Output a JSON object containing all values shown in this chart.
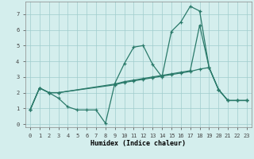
{
  "xlabel": "Humidex (Indice chaleur)",
  "bg_color": "#d4eeed",
  "line_color": "#2a7a6a",
  "grid_color": "#a0cccc",
  "xlim": [
    -0.5,
    23.5
  ],
  "ylim": [
    -0.2,
    7.8
  ],
  "xticks": [
    0,
    1,
    2,
    3,
    4,
    5,
    6,
    7,
    8,
    9,
    10,
    11,
    12,
    13,
    14,
    15,
    16,
    17,
    18,
    19,
    20,
    21,
    22,
    23
  ],
  "yticks": [
    0,
    1,
    2,
    3,
    4,
    5,
    6,
    7
  ],
  "line1_x": [
    0,
    1,
    2,
    3,
    4,
    5,
    6,
    7,
    8,
    9,
    10,
    11,
    12,
    13,
    14,
    15,
    16,
    17,
    18,
    19,
    20,
    21,
    22,
    23
  ],
  "line1_y": [
    0.9,
    2.3,
    2.0,
    1.65,
    1.1,
    0.9,
    0.9,
    0.9,
    0.05,
    2.6,
    3.85,
    4.9,
    5.0,
    3.8,
    3.0,
    5.9,
    6.5,
    7.5,
    7.2,
    3.6,
    2.2,
    1.5,
    1.5,
    1.5
  ],
  "line2_x": [
    0,
    1,
    2,
    3,
    9,
    10,
    11,
    12,
    13,
    14,
    15,
    16,
    17,
    18,
    19,
    20,
    21,
    22,
    23
  ],
  "line2_y": [
    0.9,
    2.3,
    2.0,
    2.0,
    2.55,
    2.7,
    2.8,
    2.9,
    3.0,
    3.1,
    3.2,
    3.3,
    3.4,
    6.3,
    3.6,
    2.2,
    1.5,
    1.5,
    1.5
  ],
  "line3_x": [
    0,
    1,
    2,
    3,
    9,
    10,
    11,
    12,
    13,
    14,
    15,
    16,
    17,
    18,
    19,
    20,
    21,
    22,
    23
  ],
  "line3_y": [
    0.9,
    2.3,
    2.0,
    2.0,
    2.5,
    2.65,
    2.75,
    2.85,
    2.95,
    3.05,
    3.15,
    3.25,
    3.35,
    3.5,
    3.6,
    2.2,
    1.5,
    1.5,
    1.5
  ]
}
